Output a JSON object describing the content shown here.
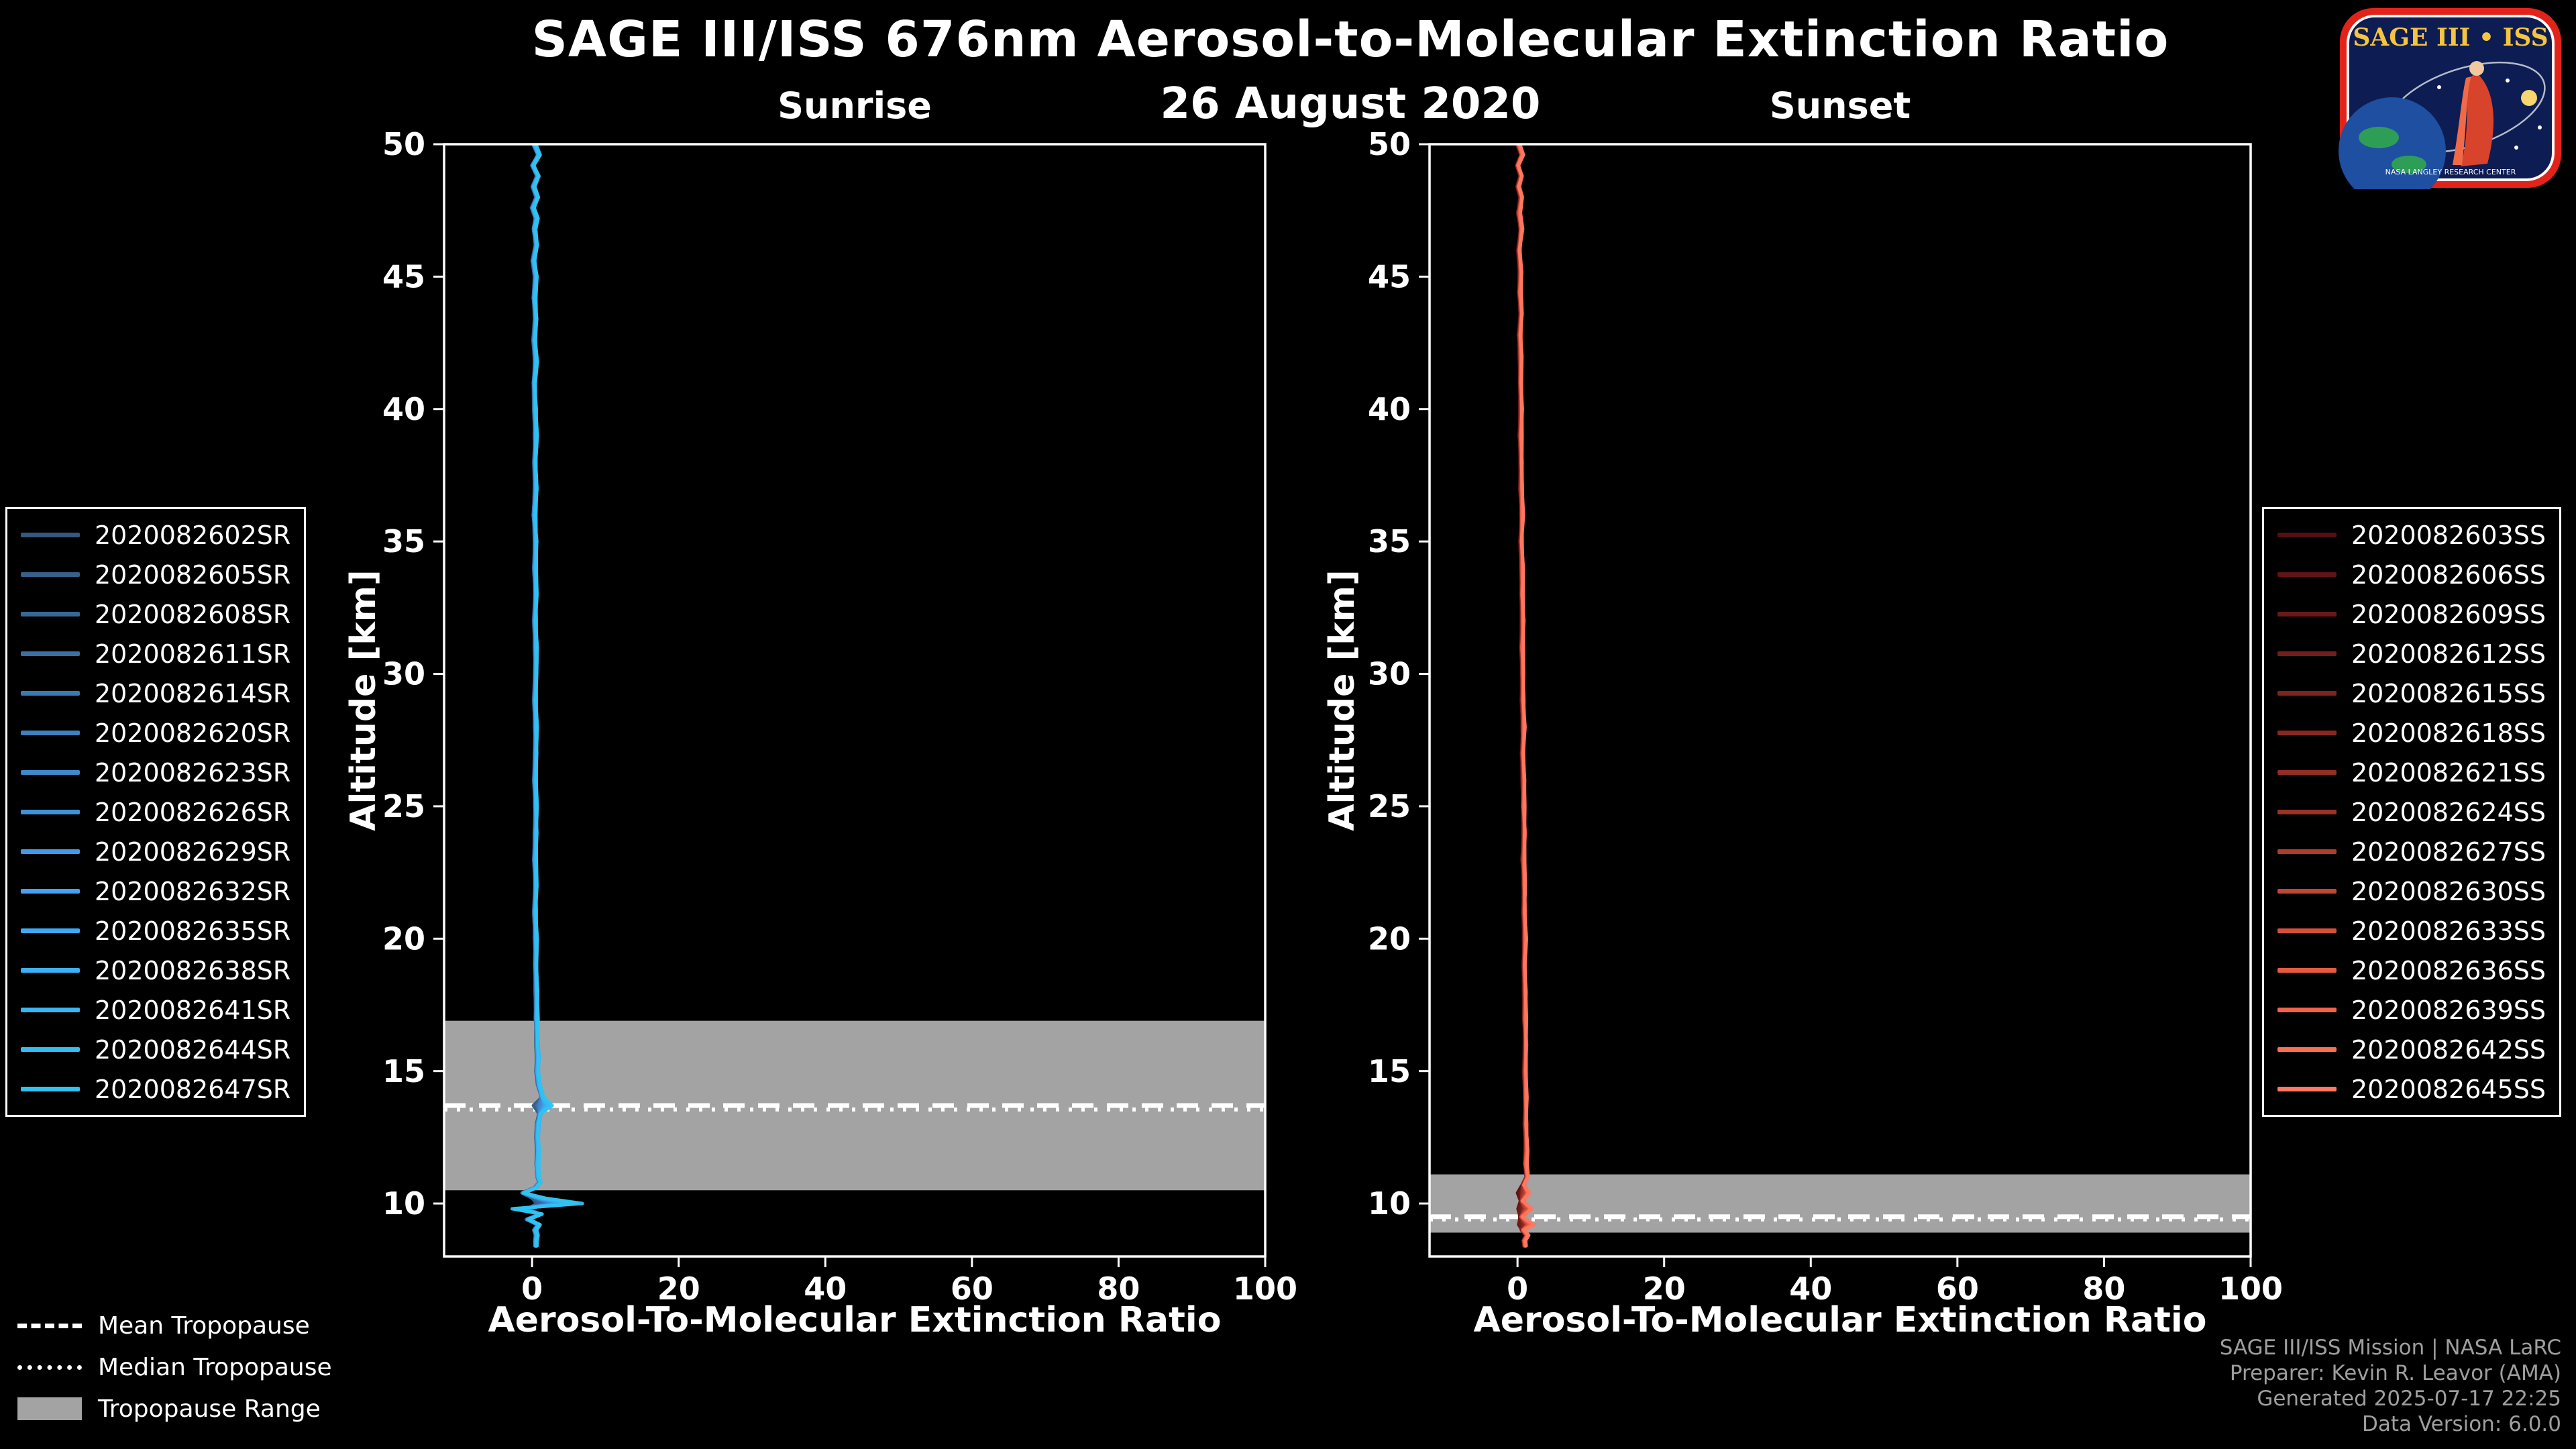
{
  "header": {
    "title": "SAGE III/ISS 676nm Aerosol-to-Molecular Extinction Ratio",
    "date": "26 August 2020"
  },
  "panels": {
    "sunrise_title": "Sunrise",
    "sunset_title": "Sunset"
  },
  "axes": {
    "x_label": "Aerosol-To-Molecular Extinction Ratio",
    "y_label": "Altitude [km]"
  },
  "tropopause_legend": {
    "mean": "Mean Tropopause",
    "median": "Median Tropopause",
    "range": "Tropopause Range"
  },
  "attribution": {
    "line1": "SAGE III/ISS Mission | NASA LaRC",
    "line2": "Preparer: Kevin R. Leavor (AMA)",
    "line3": "Generated 2025-07-17 22:25",
    "line4": "Data Version: 6.0.0"
  },
  "logo": {
    "title": "SAGE III • ISS",
    "org": "NASA LANGLEY RESEARCH CENTER"
  },
  "chart_data": [
    {
      "type": "line",
      "title": "Sunrise",
      "xlabel": "Aerosol-To-Molecular Extinction Ratio",
      "ylabel": "Altitude [km]",
      "xlim": [
        -12,
        100
      ],
      "ylim": [
        8,
        50
      ],
      "x_ticks": [
        0,
        20,
        40,
        60,
        80,
        100
      ],
      "y_ticks": [
        10,
        15,
        20,
        25,
        30,
        35,
        40,
        45,
        50
      ],
      "grid": false,
      "legend_position": "outside-left",
      "tropopause": {
        "range_km": [
          10.5,
          16.9
        ],
        "mean_km": 13.7,
        "median_km": 13.55
      },
      "series": [
        {
          "label": "2020082602SR",
          "color": "#35587c"
        },
        {
          "label": "2020082605SR",
          "color": "#37608a"
        },
        {
          "label": "2020082608SR",
          "color": "#386897"
        },
        {
          "label": "2020082611SR",
          "color": "#3a70a5"
        },
        {
          "label": "2020082614SR",
          "color": "#3b79b2"
        },
        {
          "label": "2020082620SR",
          "color": "#3d81c0"
        },
        {
          "label": "2020082623SR",
          "color": "#3e89cd"
        },
        {
          "label": "2020082626SR",
          "color": "#4092db"
        },
        {
          "label": "2020082629SR",
          "color": "#419ae8"
        },
        {
          "label": "2020082632SR",
          "color": "#43a2f6"
        },
        {
          "label": "2020082635SR",
          "color": "#3fa9f5"
        },
        {
          "label": "2020082638SR",
          "color": "#3bb0f4"
        },
        {
          "label": "2020082641SR",
          "color": "#37b6f3"
        },
        {
          "label": "2020082644SR",
          "color": "#33bdf2"
        },
        {
          "label": "2020082647SR",
          "color": "#2fc3f1"
        }
      ],
      "profile_points": [
        [
          50.0,
          0.3
        ],
        [
          49.6,
          0.9
        ],
        [
          49.2,
          0.1
        ],
        [
          48.8,
          0.8
        ],
        [
          48.4,
          0.2
        ],
        [
          48.0,
          0.7
        ],
        [
          47.6,
          0.1
        ],
        [
          47.2,
          0.6
        ],
        [
          46.8,
          0.3
        ],
        [
          46.2,
          0.6
        ],
        [
          45.6,
          0.2
        ],
        [
          45.0,
          0.5
        ],
        [
          44.2,
          0.3
        ],
        [
          43.4,
          0.5
        ],
        [
          42.6,
          0.3
        ],
        [
          41.8,
          0.5
        ],
        [
          41.0,
          0.3
        ],
        [
          40.0,
          0.4
        ],
        [
          39.0,
          0.5
        ],
        [
          38.0,
          0.4
        ],
        [
          37.0,
          0.5
        ],
        [
          36.0,
          0.3
        ],
        [
          35.0,
          0.5
        ],
        [
          34.0,
          0.4
        ],
        [
          33.0,
          0.5
        ],
        [
          32.0,
          0.4
        ],
        [
          31.0,
          0.5
        ],
        [
          30.0,
          0.5
        ],
        [
          29.0,
          0.4
        ],
        [
          28.0,
          0.5
        ],
        [
          27.0,
          0.5
        ],
        [
          26.0,
          0.4
        ],
        [
          25.0,
          0.5
        ],
        [
          24.0,
          0.5
        ],
        [
          23.0,
          0.4
        ],
        [
          22.0,
          0.5
        ],
        [
          21.0,
          0.4
        ],
        [
          20.0,
          0.5
        ],
        [
          19.0,
          0.5
        ],
        [
          18.0,
          0.6
        ],
        [
          17.0,
          0.6
        ],
        [
          16.0,
          0.7
        ],
        [
          15.5,
          0.8
        ],
        [
          15.0,
          0.7
        ],
        [
          14.5,
          0.9
        ],
        [
          14.0,
          1.4
        ],
        [
          13.7,
          2.6
        ],
        [
          13.4,
          1.1
        ],
        [
          13.0,
          0.8
        ],
        [
          12.5,
          0.7
        ],
        [
          12.0,
          0.8
        ],
        [
          11.5,
          0.7
        ],
        [
          11.0,
          0.8
        ],
        [
          10.8,
          1.1
        ],
        [
          10.6,
          0.5
        ],
        [
          10.4,
          -1.2
        ],
        [
          10.2,
          1.8
        ],
        [
          10.0,
          6.8
        ],
        [
          9.8,
          -2.8
        ],
        [
          9.6,
          1.2
        ],
        [
          9.4,
          -0.6
        ],
        [
          9.2,
          0.9
        ],
        [
          9.0,
          0.4
        ],
        [
          8.8,
          0.6
        ],
        [
          8.6,
          0.5
        ],
        [
          8.4,
          0.5
        ]
      ]
    },
    {
      "type": "line",
      "title": "Sunset",
      "xlabel": "Aerosol-To-Molecular Extinction Ratio",
      "ylabel": "Altitude [km]",
      "xlim": [
        -12,
        100
      ],
      "ylim": [
        8,
        50
      ],
      "x_ticks": [
        0,
        20,
        40,
        60,
        80,
        100
      ],
      "y_ticks": [
        10,
        15,
        20,
        25,
        30,
        35,
        40,
        45,
        50
      ],
      "grid": false,
      "legend_position": "outside-right",
      "tropopause": {
        "range_km": [
          8.9,
          11.1
        ],
        "mean_km": 9.5,
        "median_km": 9.4
      },
      "series": [
        {
          "label": "2020082603SS",
          "color": "#550f12"
        },
        {
          "label": "2020082606SS",
          "color": "#5f1415"
        },
        {
          "label": "2020082609SS",
          "color": "#6a1918"
        },
        {
          "label": "2020082612SS",
          "color": "#741e1b"
        },
        {
          "label": "2020082615SS",
          "color": "#7f231e"
        },
        {
          "label": "2020082618SS",
          "color": "#892821"
        },
        {
          "label": "2020082621SS",
          "color": "#942d24"
        },
        {
          "label": "2020082624SS",
          "color": "#9e3227"
        },
        {
          "label": "2020082627SS",
          "color": "#b03c2d"
        },
        {
          "label": "2020082630SS",
          "color": "#c24633"
        },
        {
          "label": "2020082633SS",
          "color": "#d45039"
        },
        {
          "label": "2020082636SS",
          "color": "#e65a3f"
        },
        {
          "label": "2020082639SS",
          "color": "#f16449"
        },
        {
          "label": "2020082642SS",
          "color": "#f96e55"
        },
        {
          "label": "2020082645SS",
          "color": "#ff7861"
        }
      ],
      "profile_points": [
        [
          50.0,
          0.1
        ],
        [
          49.6,
          0.6
        ],
        [
          49.2,
          0.0
        ],
        [
          48.8,
          0.5
        ],
        [
          48.4,
          0.1
        ],
        [
          48.0,
          0.5
        ],
        [
          47.4,
          0.2
        ],
        [
          46.8,
          0.5
        ],
        [
          46.0,
          0.2
        ],
        [
          45.2,
          0.4
        ],
        [
          44.4,
          0.3
        ],
        [
          43.6,
          0.5
        ],
        [
          42.8,
          0.3
        ],
        [
          42.0,
          0.4
        ],
        [
          41.0,
          0.4
        ],
        [
          40.0,
          0.5
        ],
        [
          39.0,
          0.4
        ],
        [
          38.0,
          0.5
        ],
        [
          37.0,
          0.5
        ],
        [
          36.0,
          0.6
        ],
        [
          35.0,
          0.5
        ],
        [
          34.0,
          0.6
        ],
        [
          33.0,
          0.6
        ],
        [
          32.0,
          0.7
        ],
        [
          31.0,
          0.6
        ],
        [
          30.0,
          0.7
        ],
        [
          29.0,
          0.7
        ],
        [
          28.0,
          0.8
        ],
        [
          27.0,
          0.7
        ],
        [
          26.0,
          0.8
        ],
        [
          25.0,
          0.8
        ],
        [
          24.0,
          0.9
        ],
        [
          23.0,
          0.8
        ],
        [
          22.0,
          0.9
        ],
        [
          21.0,
          0.9
        ],
        [
          20.0,
          1.0
        ],
        [
          19.0,
          0.9
        ],
        [
          18.0,
          1.0
        ],
        [
          17.0,
          1.0
        ],
        [
          16.0,
          1.1
        ],
        [
          15.0,
          1.0
        ],
        [
          14.0,
          1.1
        ],
        [
          13.0,
          1.1
        ],
        [
          12.0,
          1.2
        ],
        [
          11.5,
          1.1
        ],
        [
          11.0,
          1.3
        ],
        [
          10.7,
          0.8
        ],
        [
          10.4,
          1.6
        ],
        [
          10.1,
          0.6
        ],
        [
          9.8,
          1.9
        ],
        [
          9.5,
          0.5
        ],
        [
          9.2,
          2.1
        ],
        [
          9.0,
          0.7
        ],
        [
          8.8,
          1.3
        ],
        [
          8.6,
          0.9
        ],
        [
          8.4,
          1.0
        ]
      ]
    }
  ]
}
